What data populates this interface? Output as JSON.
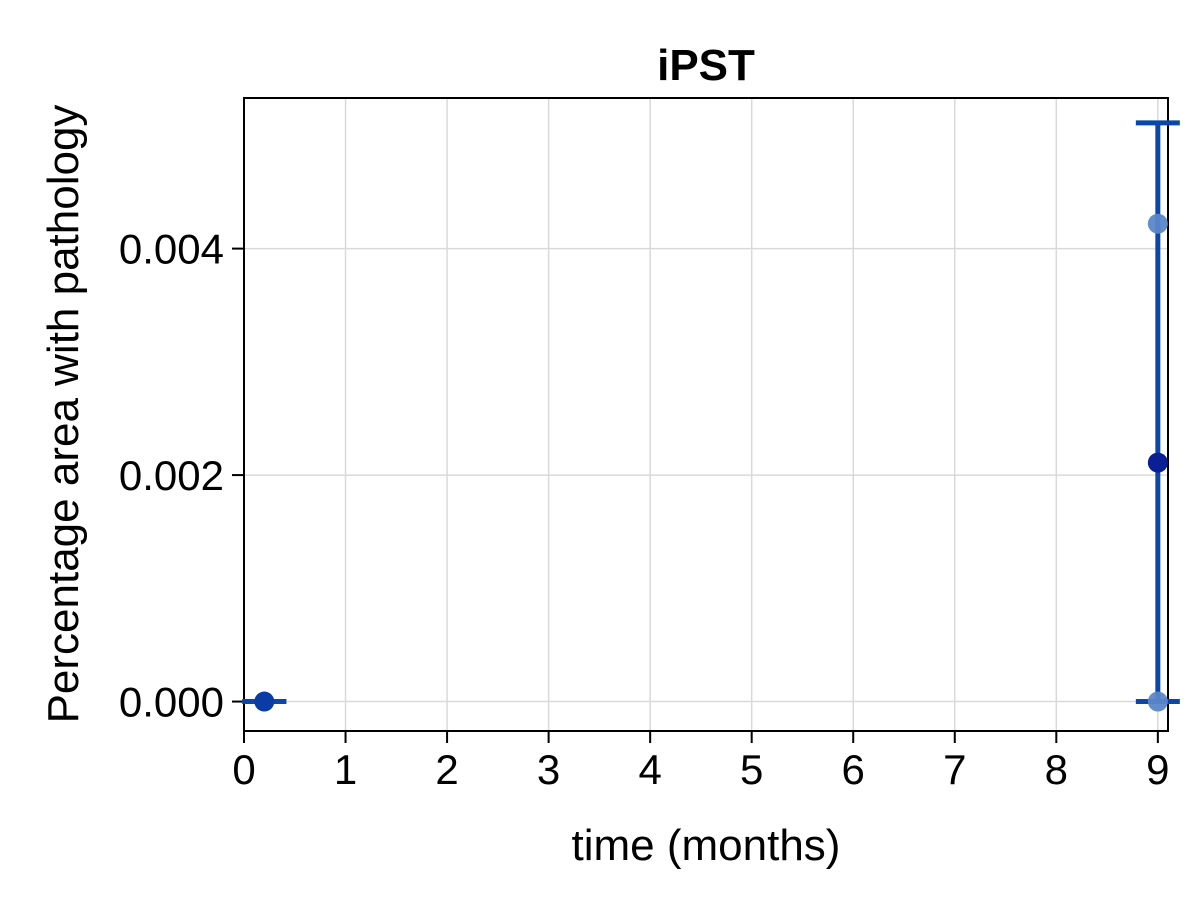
{
  "chart_data": {
    "type": "scatter",
    "title": "iPST",
    "xlabel": "time (months)",
    "ylabel": "Percentage area with pathology",
    "xlim": [
      0,
      9.1
    ],
    "ylim": [
      -0.00026,
      0.00533
    ],
    "x_ticks": [
      0,
      1,
      2,
      3,
      4,
      5,
      6,
      7,
      8,
      9
    ],
    "x_tick_labels": [
      "0",
      "1",
      "2",
      "3",
      "4",
      "5",
      "6",
      "7",
      "8",
      "9"
    ],
    "y_ticks": [
      0.0,
      0.002,
      0.004
    ],
    "y_tick_labels": [
      "0.000",
      "0.002",
      "0.004"
    ],
    "grid": true,
    "colors": {
      "individual": "#5b87c8",
      "mean": "#0a1f96",
      "errorbar": "#0a47a8",
      "mean_early": "#0a3ca6"
    },
    "individual_points": [
      {
        "x": 9,
        "y": 0.00422
      },
      {
        "x": 9,
        "y": 0.0
      }
    ],
    "mean_points": [
      {
        "x": 0.2,
        "y": 0.0,
        "yerr_low": 0.0,
        "yerr_high": 0.0
      },
      {
        "x": 9,
        "y": 0.00211,
        "yerr_low": 0.0,
        "yerr_high": 0.00511
      }
    ]
  }
}
